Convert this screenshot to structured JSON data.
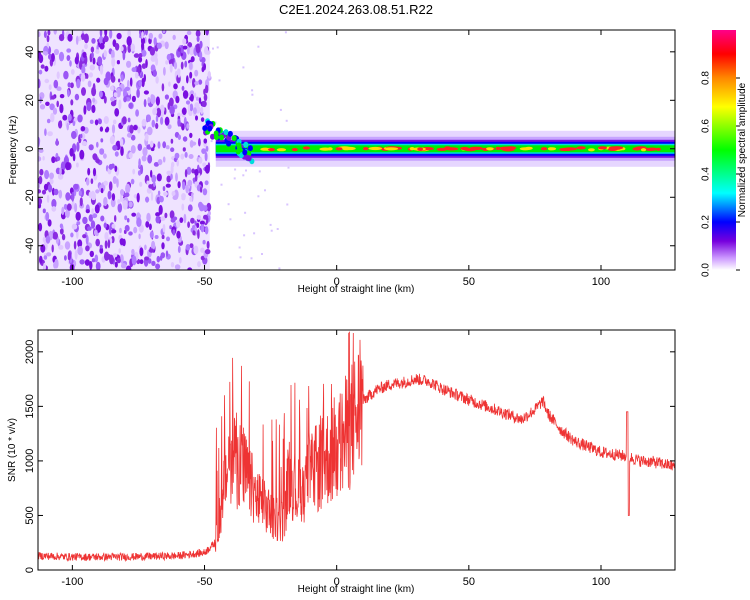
{
  "chart_data": [
    {
      "type": "heatmap",
      "title": "C2E1.2024.263.08.51.R22",
      "xlabel": "Height of straight line (km)",
      "ylabel": "Frequency (Hz)",
      "xlim": [
        -113,
        128
      ],
      "ylim": [
        -50,
        49
      ],
      "xticks": [
        -100,
        -50,
        0,
        50,
        100
      ],
      "yticks": [
        -40,
        -20,
        0,
        20,
        40
      ],
      "colorbar": {
        "label": "Normalized spectral amplitude",
        "ticks": [
          0.0,
          0.2,
          0.4,
          0.6,
          0.8
        ],
        "range": [
          0,
          1
        ],
        "colors": [
          "#ffffff",
          "#cc99ff",
          "#7700dd",
          "#0000ff",
          "#00ffff",
          "#00ff00",
          "#ffff00",
          "#ff8800",
          "#ff0000",
          "#ff0088"
        ]
      },
      "regions": [
        {
          "x": [
            -113,
            -48
          ],
          "f": [
            -50,
            49
          ],
          "level": 0.15,
          "pattern": "noise"
        },
        {
          "x": [
            -48,
            128
          ],
          "f": [
            -3,
            3
          ],
          "level": 0.75,
          "pattern": "band"
        }
      ]
    },
    {
      "type": "line",
      "xlabel": "Height of straight line (km)",
      "ylabel": "SNR (10 * v/v)",
      "xlim": [
        -113,
        128
      ],
      "ylim": [
        0,
        2200
      ],
      "xticks": [
        -100,
        -50,
        0,
        50,
        100
      ],
      "yticks": [
        0,
        500,
        1000,
        1500,
        2000
      ],
      "color": "#ee3333",
      "envelope": {
        "x": [
          -113,
          -100,
          -80,
          -60,
          -50,
          -46,
          -43,
          -40,
          -35,
          -30,
          -25,
          -20,
          -18,
          -15,
          -10,
          -5,
          0,
          5,
          10,
          15,
          20,
          25,
          30,
          35,
          40,
          50,
          60,
          70,
          75,
          78,
          80,
          85,
          90,
          100,
          105,
          110,
          115,
          120,
          128
        ],
        "y": [
          130,
          120,
          120,
          130,
          160,
          250,
          700,
          1100,
          900,
          650,
          500,
          450,
          900,
          700,
          850,
          1000,
          1100,
          1300,
          1550,
          1650,
          1700,
          1720,
          1750,
          1730,
          1660,
          1560,
          1470,
          1380,
          1470,
          1550,
          1430,
          1280,
          1180,
          1080,
          1060,
          1040,
          1000,
          990,
          950
        ]
      }
    }
  ]
}
